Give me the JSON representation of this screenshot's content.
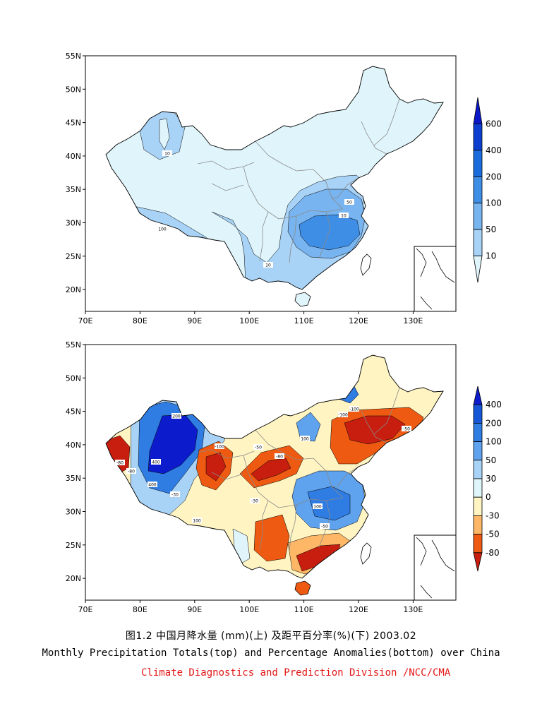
{
  "colors": {
    "precip": [
      "#dff5fb",
      "#a8d2f6",
      "#78b4f0",
      "#3f8ee6",
      "#1a6bdc",
      "#0c3fcf",
      "#0a18c8"
    ],
    "anom": [
      "#c81e10",
      "#ee5a12",
      "#fdb766",
      "#fff4c2",
      "#dff5fb",
      "#a8d2f6",
      "#5fa2ed",
      "#2f7ce3",
      "#1557d6",
      "#0c1ccc"
    ]
  },
  "panels": [
    {
      "name": "precipitation-totals",
      "x_ticks": [
        "70E",
        "80E",
        "90E",
        "100E",
        "110E",
        "120E",
        "130E"
      ],
      "y_ticks": [
        "55N",
        "50N",
        "45N",
        "40N",
        "35N",
        "30N",
        "25N",
        "20N"
      ],
      "colorbar": {
        "levels": [
          "600",
          "400",
          "200",
          "100",
          "50",
          "10"
        ]
      },
      "contour_labels": [
        "10",
        "100",
        "50",
        "10",
        "10"
      ]
    },
    {
      "name": "percentage-anomalies",
      "x_ticks": [
        "70E",
        "80E",
        "90E",
        "100E",
        "110E",
        "120E",
        "130E"
      ],
      "y_ticks": [
        "55N",
        "50N",
        "45N",
        "40N",
        "35N",
        "30N",
        "25N",
        "20N"
      ],
      "colorbar": {
        "levels": [
          "400",
          "200",
          "100",
          "50",
          "30",
          "0",
          "-30",
          "-50",
          "-80"
        ]
      },
      "contour_labels": [
        "-100",
        "200",
        "400",
        "400",
        "-80",
        "-100",
        "-80",
        "-100",
        "-80",
        "-50",
        "100",
        "100",
        "-30",
        "-50",
        "100",
        "-30",
        "-50"
      ]
    }
  ],
  "caption": {
    "chinese": "图1.2  中国月降水量 (mm)(上) 及距平百分率(%)(下)      2003.02",
    "english": "Monthly Precipitation Totals(top) and Percentage Anomalies(bottom) over China",
    "organization": "Climate Diagnostics and Prediction Division /NCC/CMA"
  }
}
